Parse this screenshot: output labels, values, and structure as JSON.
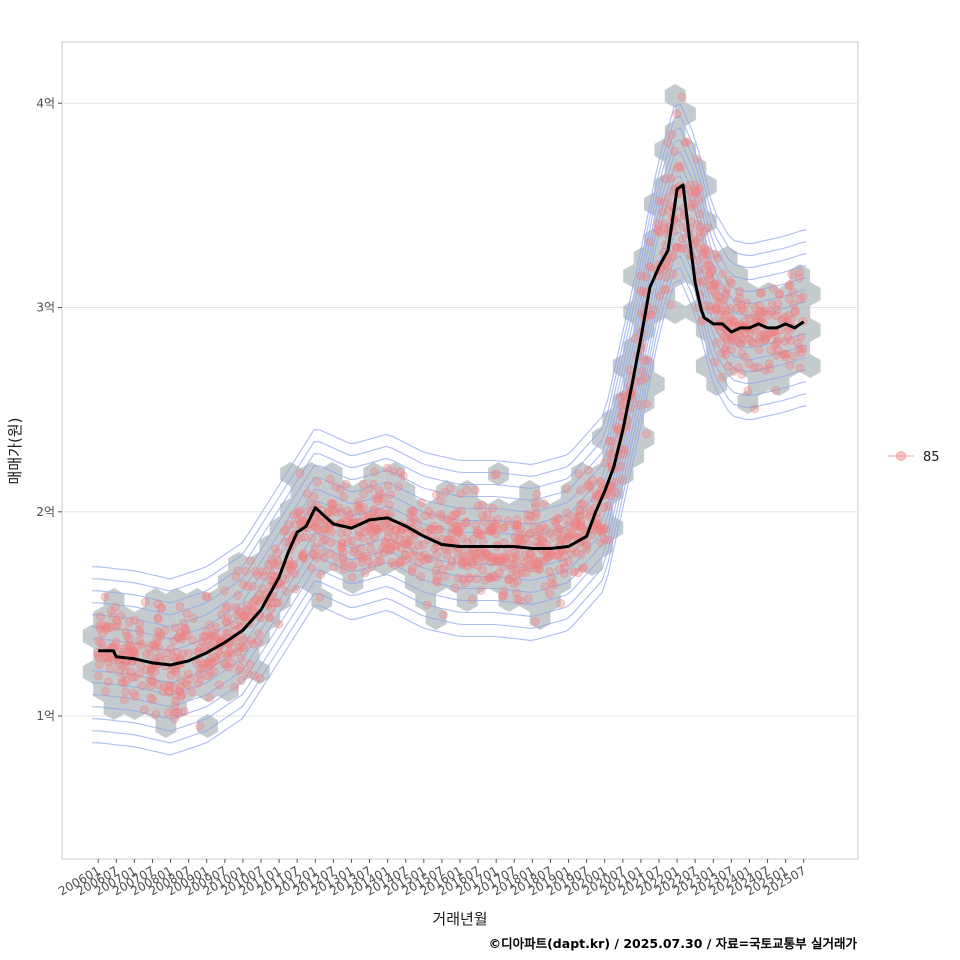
{
  "chart_data": {
    "type": "scatter",
    "title": "",
    "xlabel": "거래년월",
    "ylabel": "매매가(원)",
    "caption": "©디아파트(dapt.kr) / 2025.07.30 / 자료=국토교통부 실거래가",
    "x_ticks": [
      "200601",
      "200607",
      "200701",
      "200707",
      "200801",
      "200807",
      "200901",
      "200907",
      "201001",
      "201007",
      "201101",
      "201107",
      "201201",
      "201207",
      "201301",
      "201307",
      "201401",
      "201407",
      "201501",
      "201507",
      "201601",
      "201607",
      "201701",
      "201707",
      "201801",
      "201807",
      "201901",
      "201907",
      "202001",
      "202007",
      "202101",
      "202107",
      "202201",
      "202207",
      "202301",
      "202307",
      "202401",
      "202407",
      "202501",
      "202507"
    ],
    "x_range": [
      "2005-01",
      "2027-01"
    ],
    "y_ticks": [
      {
        "value": 1.0,
        "label": "1억"
      },
      {
        "value": 2.0,
        "label": "2억"
      },
      {
        "value": 3.0,
        "label": "3억"
      },
      {
        "value": 4.0,
        "label": "4억"
      }
    ],
    "y_unit": "억원",
    "ylim": [
      0.3,
      4.3
    ],
    "grid": true,
    "legend": {
      "position": "right",
      "items": [
        {
          "label": "85",
          "color": "#f08080"
        }
      ]
    },
    "colors": {
      "points": "#f08080",
      "hex": "#b4bcc2",
      "contour": "#8fa5e8",
      "trend": "#000000",
      "grid": "#e3e3e3"
    },
    "series": [
      {
        "name": "85",
        "kind": "trend-line",
        "x": [
          "2006-01",
          "2006-06",
          "2006-07",
          "2007-01",
          "2007-07",
          "2008-01",
          "2008-07",
          "2009-01",
          "2009-07",
          "2010-01",
          "2010-07",
          "2011-01",
          "2011-04",
          "2011-07",
          "2011-10",
          "2012-01",
          "2012-04",
          "2012-07",
          "2013-01",
          "2013-07",
          "2014-01",
          "2014-07",
          "2015-01",
          "2015-07",
          "2016-01",
          "2016-07",
          "2017-01",
          "2017-07",
          "2018-01",
          "2018-07",
          "2019-01",
          "2019-07",
          "2019-10",
          "2020-01",
          "2020-04",
          "2020-07",
          "2020-10",
          "2021-01",
          "2021-04",
          "2021-07",
          "2021-10",
          "2022-01",
          "2022-03",
          "2022-05",
          "2022-07",
          "2022-09",
          "2022-10",
          "2022-12",
          "2023-01",
          "2023-04",
          "2023-07",
          "2023-10",
          "2024-01",
          "2024-04",
          "2024-07",
          "2024-10",
          "2025-01",
          "2025-04",
          "2025-07"
        ],
        "y": [
          1.32,
          1.32,
          1.29,
          1.28,
          1.26,
          1.25,
          1.27,
          1.31,
          1.36,
          1.42,
          1.52,
          1.68,
          1.8,
          1.9,
          1.93,
          2.02,
          1.98,
          1.94,
          1.92,
          1.96,
          1.97,
          1.93,
          1.88,
          1.84,
          1.83,
          1.83,
          1.83,
          1.83,
          1.82,
          1.82,
          1.83,
          1.88,
          2.0,
          2.1,
          2.22,
          2.4,
          2.62,
          2.85,
          3.1,
          3.2,
          3.28,
          3.58,
          3.6,
          3.35,
          3.12,
          2.99,
          2.95,
          2.93,
          2.92,
          2.92,
          2.88,
          2.9,
          2.9,
          2.92,
          2.9,
          2.9,
          2.92,
          2.9,
          2.93
        ]
      },
      {
        "name": "85",
        "kind": "points-center",
        "x": [
          "2006-01",
          "2007-01",
          "2008-01",
          "2009-01",
          "2010-01",
          "2011-01",
          "2012-01",
          "2013-01",
          "2014-01",
          "2015-01",
          "2016-01",
          "2017-01",
          "2018-01",
          "2019-01",
          "2020-01",
          "2020-07",
          "2021-01",
          "2021-07",
          "2022-01",
          "2022-07",
          "2023-01",
          "2023-07",
          "2024-01",
          "2024-07",
          "2025-01",
          "2025-07"
        ],
        "y": [
          1.3,
          1.28,
          1.24,
          1.3,
          1.42,
          1.7,
          1.98,
          1.9,
          1.95,
          1.86,
          1.82,
          1.82,
          1.8,
          1.85,
          2.05,
          2.45,
          2.85,
          3.3,
          3.6,
          3.4,
          3.05,
          2.9,
          2.88,
          2.9,
          2.92,
          2.95
        ]
      }
    ]
  }
}
